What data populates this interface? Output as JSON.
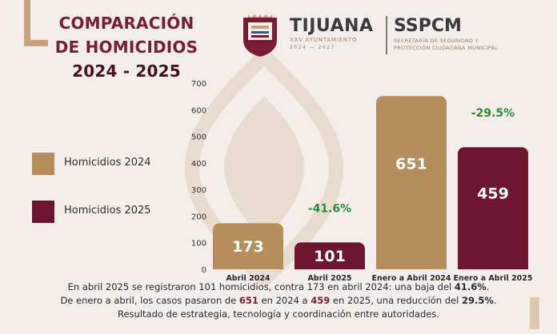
{
  "header": {
    "title_line1": "COMPARACIÓN",
    "title_line2": "DE HOMICIDIOS",
    "title_line3": "2024 - 2025",
    "city": "TIJUANA",
    "ayuntamiento": "XXV AYUNTAMIENTO",
    "ayuntamiento_years": "2024 — 2027",
    "agency": "SSPCM",
    "agency_line1": "SECRETARÍA DE SEGURIDAD Y",
    "agency_line2": "PROTECCIÓN CIUDADANA MUNICIPAL"
  },
  "legend": [
    {
      "label": "Homicidios 2024",
      "color": "#b58e5c"
    },
    {
      "label": "Homicidios 2025",
      "color": "#6e1530"
    }
  ],
  "chart_data": {
    "type": "bar",
    "title": "COMPARACIÓN DE HOMICIDIOS 2024 - 2025",
    "ylim": [
      0,
      700
    ],
    "yticks": [
      0,
      100,
      200,
      300,
      400,
      500,
      600,
      700
    ],
    "grid": false,
    "categories": [
      "Abril 2024",
      "Abril 2025",
      "Enero a Abril 2024",
      "Enero a Abril 2025"
    ],
    "values": [
      173,
      101,
      651,
      459
    ],
    "value_labels": [
      "173",
      "101",
      "651",
      "459"
    ],
    "colors": [
      "#b58e5c",
      "#6e1530",
      "#b58e5c",
      "#6e1530"
    ],
    "annotations": [
      {
        "bar_index": 1,
        "text": "-41.6%",
        "color": "#2e8b3a"
      },
      {
        "bar_index": 3,
        "text": "-29.5%",
        "color": "#2e8b3a"
      }
    ]
  },
  "footer": {
    "l1_pre": "En abril 2025 se registraron 101 homicidios, contra 173 en abril 2024: una baja del ",
    "l1_pct": "41.6%",
    "l1_end": ".",
    "l2_pre": "De enero a abril, los casos pasaron de ",
    "l2_a": "651",
    "l2_mid1": " en 2024 a ",
    "l2_b": "459",
    "l2_mid2": " en 2025, una reducción del ",
    "l2_pct": "29.5%",
    "l2_end": ".",
    "l3": "Resultado de estrategia, tecnología y coordinación entre autoridades."
  }
}
